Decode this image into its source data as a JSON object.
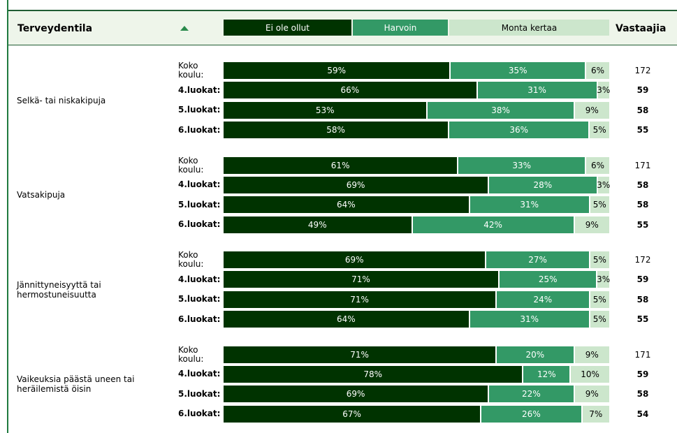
{
  "header": {
    "title": "Terveydentila",
    "sort_icon": "triangle-up-icon",
    "legend": [
      "Ei ole ollut",
      "Harvoin",
      "Monta kertaa"
    ],
    "respondents_label": "Vastaajia"
  },
  "colors": {
    "never": "#003300",
    "rarely": "#339966",
    "often": "#cce6cc"
  },
  "chart_data": {
    "type": "bar",
    "stacked": true,
    "orientation": "horizontal",
    "unit": "%",
    "series_names": [
      "Ei ole ollut",
      "Harvoin",
      "Monta kertaa"
    ],
    "groups": [
      {
        "topic": "Selkä- tai niskakipuja",
        "rows": [
          {
            "label": "Koko\nkoulu:",
            "values": [
              59,
              35,
              6
            ],
            "respondents": 172,
            "bold": false
          },
          {
            "label": "4.luokat:",
            "values": [
              66,
              31,
              3
            ],
            "respondents": 59,
            "bold": true
          },
          {
            "label": "5.luokat:",
            "values": [
              53,
              38,
              9
            ],
            "respondents": 58,
            "bold": true
          },
          {
            "label": "6.luokat:",
            "values": [
              58,
              36,
              5
            ],
            "respondents": 55,
            "bold": true
          }
        ]
      },
      {
        "topic": "Vatsakipuja",
        "rows": [
          {
            "label": "Koko\nkoulu:",
            "values": [
              61,
              33,
              6
            ],
            "respondents": 171,
            "bold": false
          },
          {
            "label": "4.luokat:",
            "values": [
              69,
              28,
              3
            ],
            "respondents": 58,
            "bold": true
          },
          {
            "label": "5.luokat:",
            "values": [
              64,
              31,
              5
            ],
            "respondents": 58,
            "bold": true
          },
          {
            "label": "6.luokat:",
            "values": [
              49,
              42,
              9
            ],
            "respondents": 55,
            "bold": true
          }
        ]
      },
      {
        "topic": "Jännittyneisyyttä tai\nhermostuneisuutta",
        "rows": [
          {
            "label": "Koko\nkoulu:",
            "values": [
              69,
              27,
              5
            ],
            "respondents": 172,
            "bold": false
          },
          {
            "label": "4.luokat:",
            "values": [
              71,
              25,
              3
            ],
            "respondents": 59,
            "bold": true
          },
          {
            "label": "5.luokat:",
            "values": [
              71,
              24,
              5
            ],
            "respondents": 58,
            "bold": true
          },
          {
            "label": "6.luokat:",
            "values": [
              64,
              31,
              5
            ],
            "respondents": 55,
            "bold": true
          }
        ]
      },
      {
        "topic": "Vaikeuksia päästä uneen tai\nheräilemistä öisin",
        "rows": [
          {
            "label": "Koko\nkoulu:",
            "values": [
              71,
              20,
              9
            ],
            "respondents": 171,
            "bold": false
          },
          {
            "label": "4.luokat:",
            "values": [
              78,
              12,
              10
            ],
            "respondents": 59,
            "bold": true
          },
          {
            "label": "5.luokat:",
            "values": [
              69,
              22,
              9
            ],
            "respondents": 58,
            "bold": true
          },
          {
            "label": "6.luokat:",
            "values": [
              67,
              26,
              7
            ],
            "respondents": 54,
            "bold": true
          }
        ]
      }
    ]
  }
}
